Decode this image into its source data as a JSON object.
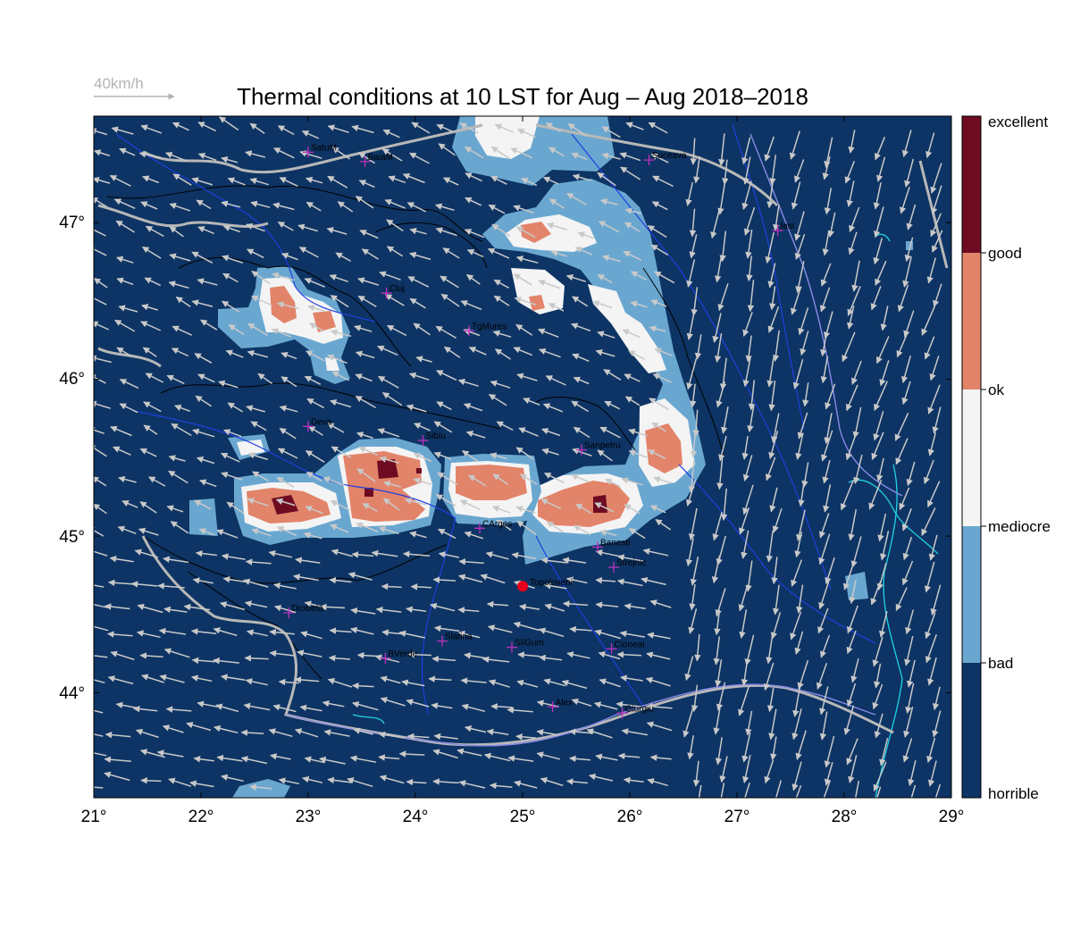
{
  "title": "Thermal conditions at 10 LST for Aug – Aug  2018–2018",
  "wind_reference": {
    "label": "40km/h"
  },
  "x_ticks": [
    "21°",
    "22°",
    "23°",
    "24°",
    "25°",
    "26°",
    "27°",
    "28°",
    "29°"
  ],
  "y_ticks": [
    "44°",
    "45°",
    "46°",
    "47°"
  ],
  "colorbar": {
    "labels": [
      "horrible",
      "bad",
      "mediocre",
      "ok",
      "good",
      "excellent"
    ],
    "colors": [
      "#0d3464",
      "#6aa7d0",
      "#f4f4f4",
      "#e2846a",
      "#6e0b22"
    ]
  },
  "colors": {
    "horrible": "#0d3464",
    "bad": "#6aa7d0",
    "mediocre": "#f4f4f4",
    "ok": "#e2846a",
    "excellent": "#6e0b22",
    "border": "#b8b8b8",
    "rivers": "#1f3fe0",
    "coast": "#22d3e6",
    "arrows": "#c9c9c9",
    "marker": "#e8001c",
    "cities": "#c030c0"
  },
  "highlight_station": {
    "name": "Topoloveni",
    "lon": 25.0,
    "lat": 44.68
  },
  "cities": [
    {
      "name": "SatuM",
      "lon": 23.0,
      "lat": 47.45
    },
    {
      "name": "BaiaM",
      "lon": 23.53,
      "lat": 47.39
    },
    {
      "name": "Suceava",
      "lon": 26.18,
      "lat": 47.4
    },
    {
      "name": "Iasi",
      "lon": 27.38,
      "lat": 46.95
    },
    {
      "name": "Cluj",
      "lon": 23.73,
      "lat": 46.55
    },
    {
      "name": "TgMures",
      "lon": 24.5,
      "lat": 46.31
    },
    {
      "name": "Deva",
      "lon": 23.0,
      "lat": 45.7
    },
    {
      "name": "Sibiu",
      "lon": 24.07,
      "lat": 45.61
    },
    {
      "name": "Sanpetru",
      "lon": 25.55,
      "lat": 45.55
    },
    {
      "name": "CArges",
      "lon": 24.6,
      "lat": 45.05
    },
    {
      "name": "Banesti",
      "lon": 25.7,
      "lat": 44.93
    },
    {
      "name": "Strejnic",
      "lon": 25.85,
      "lat": 44.8
    },
    {
      "name": "Drobeta",
      "lon": 22.82,
      "lat": 44.51
    },
    {
      "name": "Slatina",
      "lon": 24.25,
      "lat": 44.33
    },
    {
      "name": "SilGum",
      "lon": 24.9,
      "lat": 44.29
    },
    {
      "name": "Cioneai",
      "lon": 25.83,
      "lat": 44.28
    },
    {
      "name": "BVerde",
      "lon": 23.72,
      "lat": 44.22
    },
    {
      "name": "Alex",
      "lon": 25.28,
      "lat": 43.91
    },
    {
      "name": "Giurgiu",
      "lon": 25.93,
      "lat": 43.87
    }
  ]
}
